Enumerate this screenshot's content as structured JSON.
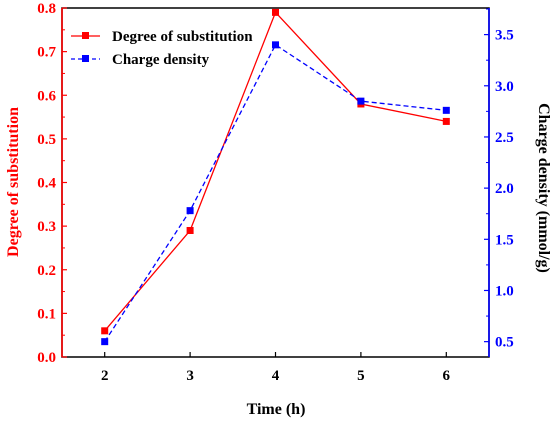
{
  "chart_data": {
    "type": "line",
    "x": [
      2,
      3,
      4,
      5,
      6
    ],
    "xlabel": "Time (h)",
    "xlim": [
      1.5,
      6.5
    ],
    "xticks": [
      "2",
      "3",
      "4",
      "5",
      "6"
    ],
    "series": [
      {
        "name": "Degree of substitution",
        "axis": "left",
        "values": [
          0.06,
          0.29,
          0.79,
          0.58,
          0.54
        ],
        "color": "#ff0000",
        "line_style": "solid",
        "marker": "square"
      },
      {
        "name": "Charge density",
        "axis": "right",
        "values": [
          0.5,
          1.78,
          3.4,
          2.85,
          2.76
        ],
        "color": "#0000ff",
        "line_style": "dashed",
        "marker": "square"
      }
    ],
    "y_left": {
      "label": "Degree of substitution",
      "ylim": [
        0,
        0.8
      ],
      "ticks": [
        "0.0",
        "0.1",
        "0.2",
        "0.3",
        "0.4",
        "0.5",
        "0.6",
        "0.7",
        "0.8"
      ],
      "color": "#ff0000"
    },
    "y_right": {
      "label": "Charge density (mmol/g)",
      "ylim": [
        0.35,
        3.76
      ],
      "ticks": [
        "0.5",
        "1.0",
        "1.5",
        "2.0",
        "2.5",
        "3.0",
        "3.5"
      ],
      "color": "#0000ff"
    },
    "legend": {
      "position": "top-left",
      "entries": [
        "Degree of substitution",
        "Charge density"
      ]
    },
    "grid": false
  }
}
